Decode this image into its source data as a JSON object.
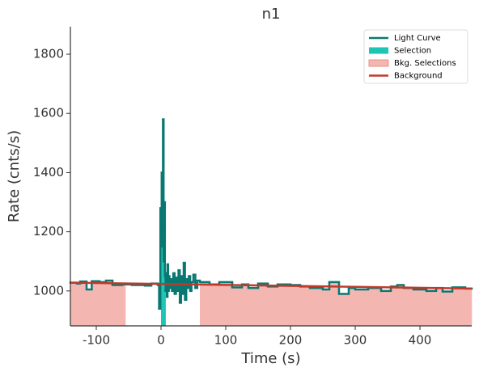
{
  "chart_data": {
    "type": "lightcurve",
    "title": "n1",
    "xlabel": "Time (s)",
    "ylabel": "Rate (cnts/s)",
    "xlim": [
      -140,
      480
    ],
    "ylim": [
      882,
      1893
    ],
    "xticks": [
      -100,
      0,
      100,
      200,
      300,
      400
    ],
    "yticks": [
      1000,
      1200,
      1400,
      1600,
      1800
    ],
    "legend": "upper right",
    "series": [
      {
        "name": "Light Curve",
        "color": "#0a7872",
        "bins": [
          -140,
          -130,
          -125,
          -115,
          -107,
          -95,
          -85,
          -75,
          -60,
          -45,
          -25,
          -15,
          -5,
          -3,
          -1,
          0,
          1,
          2,
          3,
          4,
          5,
          6,
          7,
          8,
          9,
          10,
          11,
          12,
          13,
          15,
          17,
          19,
          21,
          23,
          25,
          27,
          29,
          31,
          33,
          35,
          37,
          39,
          41,
          43,
          45,
          47,
          50,
          53,
          56,
          60,
          75,
          90,
          110,
          125,
          135,
          150,
          165,
          180,
          200,
          215,
          230,
          250,
          260,
          275,
          290,
          300,
          320,
          340,
          355,
          365,
          375,
          390,
          410,
          425,
          435,
          450,
          470,
          480
        ],
        "values": [
          1028,
          1025,
          1032,
          1005,
          1033,
          1030,
          1035,
          1020,
          1022,
          1020,
          1018,
          1025,
          1020,
          940,
          1280,
          1150,
          1400,
          1200,
          1580,
          1100,
          1300,
          1050,
          1000,
          1060,
          980,
          1090,
          1000,
          1050,
          1010,
          1040,
          1000,
          1060,
          990,
          1045,
          1000,
          1070,
          960,
          1050,
          990,
          1095,
          970,
          1040,
          1010,
          1050,
          1000,
          1030,
          1055,
          1010,
          1035,
          1030,
          1022,
          1030,
          1012,
          1022,
          1010,
          1025,
          1015,
          1022,
          1020,
          1015,
          1010,
          1005,
          1030,
          990,
          1010,
          1005,
          1010,
          1000,
          1015,
          1020,
          1010,
          1005,
          1000,
          1010,
          998,
          1012,
          1008
        ]
      },
      {
        "name": "Selection",
        "color": "#1ec4b4",
        "intervals": [
          [
            0,
            7
          ]
        ]
      },
      {
        "name": "Bkg. Selections",
        "color": "#f4b6b0",
        "intervals": [
          [
            -140,
            -55
          ],
          [
            60,
            480
          ]
        ]
      },
      {
        "name": "Background",
        "color": "#c0392b",
        "x": [
          -140,
          480
        ],
        "values": [
          1028,
          1008
        ]
      }
    ]
  }
}
